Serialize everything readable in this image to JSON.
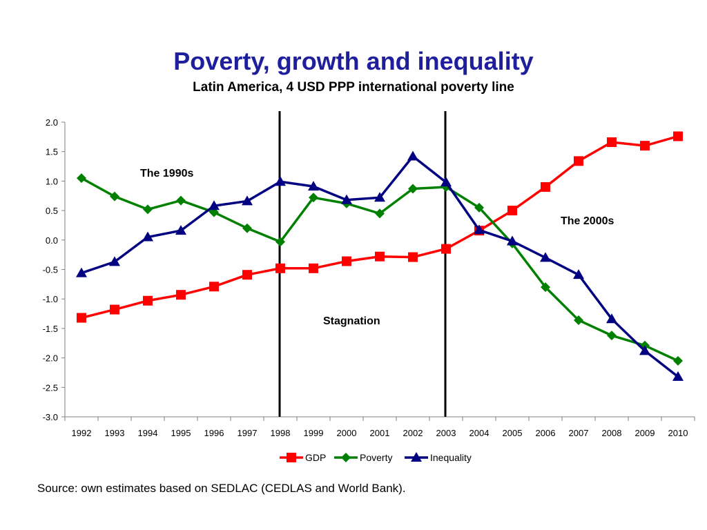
{
  "chart_data": {
    "type": "line",
    "title": "Poverty, growth and inequality",
    "subtitle": "Latin America, 4 USD PPP international poverty line",
    "xlabel": "",
    "ylabel": "",
    "ylim": [
      -3.0,
      2.0
    ],
    "yticks": [
      "2.0",
      "1.5",
      "1.0",
      "0.5",
      "0.0",
      "-0.5",
      "-1.0",
      "-1.5",
      "-2.0",
      "-2.5",
      "-3.0"
    ],
    "ytick_values": [
      2.0,
      1.5,
      1.0,
      0.5,
      0.0,
      -0.5,
      -1.0,
      -1.5,
      -2.0,
      -2.5,
      -3.0
    ],
    "categories": [
      "1992",
      "1993",
      "1994",
      "1995",
      "1996",
      "1997",
      "1998",
      "1999",
      "2000",
      "2001",
      "2002",
      "2003",
      "2004",
      "2005",
      "2006",
      "2007",
      "2008",
      "2009",
      "2010"
    ],
    "series": [
      {
        "name": "GDP",
        "color": "#ff0000",
        "marker": "square",
        "values": [
          -1.32,
          -1.18,
          -1.03,
          -0.93,
          -0.79,
          -0.59,
          -0.48,
          -0.48,
          -0.36,
          -0.28,
          -0.29,
          -0.15,
          0.16,
          0.5,
          0.9,
          1.34,
          1.66,
          1.6,
          1.76
        ]
      },
      {
        "name": "Poverty",
        "color": "#008000",
        "marker": "diamond",
        "values": [
          1.05,
          0.74,
          0.52,
          0.67,
          0.47,
          0.2,
          -0.03,
          0.72,
          0.62,
          0.45,
          0.87,
          0.9,
          0.55,
          -0.06,
          -0.8,
          -1.36,
          -1.62,
          -1.79,
          -2.05
        ]
      },
      {
        "name": "Inequality",
        "color": "#000080",
        "marker": "triangle",
        "values": [
          -0.56,
          -0.37,
          0.05,
          0.16,
          0.58,
          0.66,
          0.99,
          0.91,
          0.68,
          0.72,
          1.42,
          0.98,
          0.17,
          -0.02,
          -0.3,
          -0.59,
          -1.34,
          -1.88,
          -2.32
        ]
      }
    ],
    "vertical_lines": [
      "1998",
      "2003"
    ],
    "annotations": [
      {
        "text": "The 1990s"
      },
      {
        "text": "The 2000s"
      },
      {
        "text": "Stagnation"
      }
    ],
    "legend_position": "bottom",
    "grid": false
  },
  "source": "Source: own estimates based on SEDLAC (CEDLAS and World Bank)."
}
